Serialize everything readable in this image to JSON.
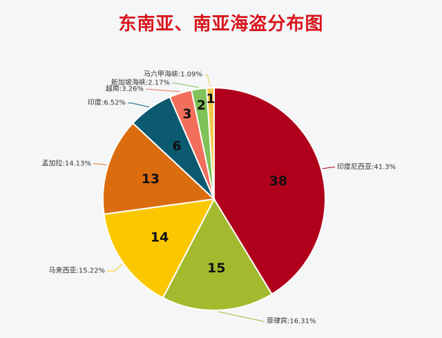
{
  "title": "东南亚、南亚海盗分布图",
  "chart_data": {
    "type": "pie",
    "title": "东南亚、南亚海盗分布图",
    "slices": [
      {
        "name": "印度尼西亚",
        "value": 38,
        "percent_label": "印度尼西亚:41.3%",
        "color": "#b0001c"
      },
      {
        "name": "菲律宾",
        "value": 15,
        "percent_label": "菲律宾:16.31%",
        "color": "#a3ba2e"
      },
      {
        "name": "马来西亚",
        "value": 14,
        "percent_label": "马来西亚:15.22%",
        "color": "#fbc800"
      },
      {
        "name": "孟加拉",
        "value": 13,
        "percent_label": "孟加拉:14.13%",
        "color": "#dc6d0f"
      },
      {
        "name": "印度",
        "value": 6,
        "percent_label": "印度:6.52%",
        "color": "#0c5a70"
      },
      {
        "name": "越南",
        "value": 3,
        "percent_label": "越南:3.26%",
        "color": "#f26f5c"
      },
      {
        "name": "新加坡海峡",
        "value": 2,
        "percent_label": "新加坡海峡:2.17%",
        "color": "#7fc258"
      },
      {
        "name": "马六甲海峡",
        "value": 1,
        "percent_label": "马六甲海峡:1.09%",
        "color": "#f2c94c"
      }
    ]
  }
}
